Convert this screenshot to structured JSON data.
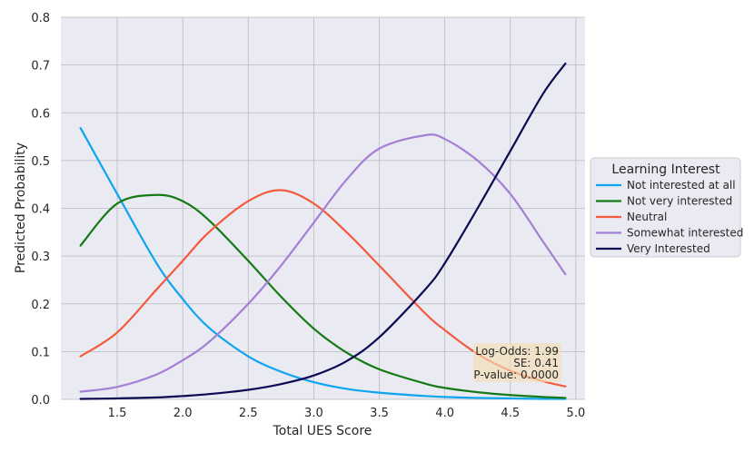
{
  "chart_data": {
    "type": "line",
    "title": "",
    "xlabel": "Total UES Score",
    "ylabel": "Predicted Probability",
    "xlim": [
      1.07,
      5.07
    ],
    "ylim": [
      0,
      0.8
    ],
    "xticks": [
      1.5,
      2.0,
      2.5,
      3.0,
      3.5,
      4.0,
      4.5,
      5.0
    ],
    "xtick_labels": [
      "1.5",
      "2.0",
      "2.5",
      "3.0",
      "3.5",
      "4.0",
      "4.5",
      "5.0"
    ],
    "yticks": [
      0.0,
      0.1,
      0.2,
      0.3,
      0.4,
      0.5,
      0.6,
      0.7,
      0.8
    ],
    "ytick_labels": [
      "0.0",
      "0.1",
      "0.2",
      "0.3",
      "0.4",
      "0.5",
      "0.6",
      "0.7",
      "0.8"
    ],
    "grid": true,
    "legend": {
      "title": "Learning Interest",
      "placement": "right-outside"
    },
    "x": [
      1.22,
      1.5,
      1.8,
      2.0,
      2.2,
      2.5,
      2.75,
      3.0,
      3.25,
      3.5,
      3.85,
      4.0,
      4.25,
      4.5,
      4.75,
      4.92
    ],
    "series": [
      {
        "name": "Not interested at all",
        "color": "#0ea5f0",
        "values": [
          0.568,
          0.43,
          0.285,
          0.21,
          0.15,
          0.09,
          0.058,
          0.036,
          0.022,
          0.014,
          0.007,
          0.005,
          0.003,
          0.002,
          0.001,
          0.001
        ]
      },
      {
        "name": "Not very interested",
        "color": "#157a15",
        "values": [
          0.322,
          0.41,
          0.428,
          0.415,
          0.375,
          0.29,
          0.215,
          0.148,
          0.098,
          0.063,
          0.033,
          0.024,
          0.015,
          0.009,
          0.005,
          0.003
        ]
      },
      {
        "name": "Neutral",
        "color": "#f4593d",
        "values": [
          0.09,
          0.14,
          0.23,
          0.29,
          0.35,
          0.415,
          0.438,
          0.41,
          0.35,
          0.28,
          0.18,
          0.145,
          0.095,
          0.06,
          0.038,
          0.027
        ]
      },
      {
        "name": "Somewhat interested",
        "color": "#a37fd6",
        "values": [
          0.016,
          0.026,
          0.052,
          0.082,
          0.12,
          0.2,
          0.28,
          0.37,
          0.46,
          0.525,
          0.553,
          0.545,
          0.5,
          0.43,
          0.33,
          0.262
        ]
      },
      {
        "name": "Very Interested",
        "color": "#0c0a52",
        "values": [
          0.001,
          0.002,
          0.004,
          0.007,
          0.011,
          0.02,
          0.032,
          0.05,
          0.08,
          0.13,
          0.23,
          0.285,
          0.4,
          0.52,
          0.64,
          0.703
        ]
      }
    ],
    "annotation": {
      "lines": [
        "Log-Odds: 1.99",
        "SE: 0.41",
        "P-value: 0.0000"
      ],
      "placement": "bottom-right",
      "bg_color": "#f5deb3"
    }
  }
}
